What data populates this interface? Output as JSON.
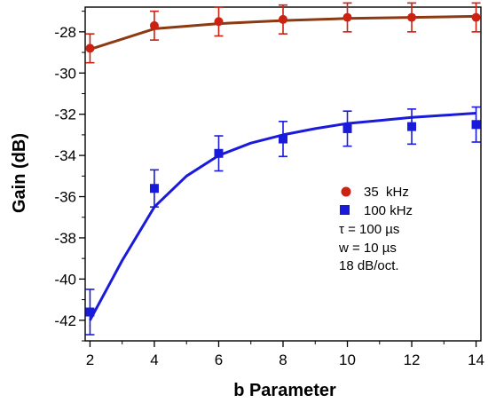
{
  "chart_data": {
    "type": "scatter",
    "xlabel": "b Parameter",
    "ylabel": "Gain (dB)",
    "xlim": [
      1.85,
      14.15
    ],
    "ylim": [
      -43.0,
      -26.8
    ],
    "x_ticks": [
      2,
      4,
      6,
      8,
      10,
      12,
      14
    ],
    "y_ticks": [
      -28,
      -30,
      -32,
      -34,
      -36,
      -38,
      -40,
      -42
    ],
    "x_tick_labels": [
      "2",
      "4",
      "6",
      "8",
      "10",
      "12",
      "14"
    ],
    "y_tick_labels": [
      "-28",
      "-30",
      "-32",
      "-34",
      "-36",
      "-38",
      "-40",
      "-42"
    ],
    "grid": false,
    "legend_position": "center-right",
    "series": [
      {
        "name": "35  kHz",
        "marker": "circle",
        "color": "#cc2211",
        "fit_color": "#8b3a12",
        "points": [
          {
            "x": 2,
            "y": -28.8,
            "err": 0.7
          },
          {
            "x": 4,
            "y": -27.7,
            "err": 0.7
          },
          {
            "x": 6,
            "y": -27.5,
            "err": 0.7
          },
          {
            "x": 8,
            "y": -27.4,
            "err": 0.7
          },
          {
            "x": 10,
            "y": -27.3,
            "err": 0.7
          },
          {
            "x": 12,
            "y": -27.3,
            "err": 0.7
          },
          {
            "x": 14,
            "y": -27.3,
            "err": 0.7
          }
        ],
        "fit": [
          {
            "x": 2,
            "y": -28.85
          },
          {
            "x": 4,
            "y": -27.85
          },
          {
            "x": 6,
            "y": -27.6
          },
          {
            "x": 8,
            "y": -27.45
          },
          {
            "x": 10,
            "y": -27.35
          },
          {
            "x": 12,
            "y": -27.3
          },
          {
            "x": 14,
            "y": -27.25
          }
        ]
      },
      {
        "name": "100 kHz",
        "marker": "square",
        "color": "#1a1adb",
        "fit_color": "#1a1adb",
        "points": [
          {
            "x": 2,
            "y": -41.6,
            "err": 1.1
          },
          {
            "x": 4,
            "y": -35.6,
            "err": 0.9
          },
          {
            "x": 6,
            "y": -33.9,
            "err": 0.85
          },
          {
            "x": 8,
            "y": -33.2,
            "err": 0.85
          },
          {
            "x": 10,
            "y": -32.7,
            "err": 0.85
          },
          {
            "x": 12,
            "y": -32.6,
            "err": 0.85
          },
          {
            "x": 14,
            "y": -32.5,
            "err": 0.85
          }
        ],
        "fit": [
          {
            "x": 2,
            "y": -42.0
          },
          {
            "x": 3,
            "y": -39.1
          },
          {
            "x": 4,
            "y": -36.5
          },
          {
            "x": 5,
            "y": -35.0
          },
          {
            "x": 6,
            "y": -34.0
          },
          {
            "x": 7,
            "y": -33.4
          },
          {
            "x": 8,
            "y": -33.0
          },
          {
            "x": 9,
            "y": -32.7
          },
          {
            "x": 10,
            "y": -32.45
          },
          {
            "x": 11,
            "y": -32.3
          },
          {
            "x": 12,
            "y": -32.15
          },
          {
            "x": 13,
            "y": -32.05
          },
          {
            "x": 14,
            "y": -31.95
          }
        ]
      }
    ],
    "annotations": [
      "τ = 100 µs",
      "w = 10 µs",
      "18 dB/oct."
    ]
  }
}
